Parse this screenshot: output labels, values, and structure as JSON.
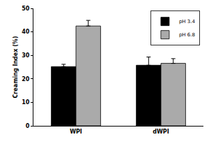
{
  "chart_data": {
    "type": "bar",
    "y_label": "Creaming Index (%)",
    "categories": [
      "WPI",
      "dWPI"
    ],
    "series": [
      {
        "name": "pH 3.4",
        "color": "#000000",
        "values": [
          25.2,
          25.8
        ],
        "errors": [
          1.0,
          3.5
        ]
      },
      {
        "name": "pH 6.8",
        "color": "#aaaaaa",
        "values": [
          42.5,
          26.6
        ],
        "errors": [
          2.4,
          2.0
        ]
      }
    ],
    "ylim": [
      0,
      50
    ],
    "yticks": [
      0,
      10,
      20,
      30,
      40,
      50
    ],
    "grid": false,
    "legend": "upper right"
  }
}
